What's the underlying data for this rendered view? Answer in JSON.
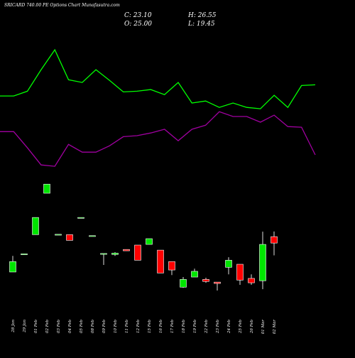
{
  "chart_data": {
    "type": "candlestick",
    "title": "SRICARD 740.00 PE Options Chart Munafasutra.com",
    "stats": [
      "C: 23.10",
      "H: 26.55",
      "O: 25.00",
      "L: 19.45"
    ],
    "categories": [
      "28 Jan",
      "29 Jan",
      "01 Feb",
      "02 Feb",
      "03 Feb",
      "04 Feb",
      "05 Feb",
      "08 Feb",
      "09 Feb",
      "10 Feb",
      "11 Feb",
      "12 Feb",
      "15 Feb",
      "16 Feb",
      "17 Feb",
      "18 Feb",
      "19 Feb",
      "22 Feb",
      "23 Feb",
      "24 Feb",
      "25 Feb",
      "26 Feb",
      "01 Mar",
      "02 Mar"
    ],
    "open": [
      14.5,
      19.8,
      25.6,
      37.9,
      25.6,
      25.6,
      30.6,
      25.2,
      19.9,
      19.7,
      21.2,
      22.5,
      22.7,
      21.0,
      17.6,
      10.0,
      13.0,
      12.3,
      11.5,
      15.9,
      16.8,
      12.6,
      11.9,
      25.0
    ],
    "high": [
      19.3,
      19.9,
      30.7,
      40.6,
      25.7,
      25.6,
      30.7,
      25.3,
      20.0,
      20.4,
      21.2,
      22.5,
      24.4,
      21.0,
      17.6,
      13.0,
      15.5,
      12.8,
      11.5,
      18.9,
      16.8,
      13.8,
      26.5,
      26.55
    ],
    "low": [
      14.5,
      19.8,
      25.6,
      37.9,
      25.6,
      23.9,
      30.6,
      25.2,
      16.6,
      19.3,
      20.8,
      18.0,
      22.7,
      14.2,
      13.6,
      9.8,
      13.0,
      11.3,
      9.0,
      13.8,
      10.7,
      10.7,
      9.4,
      19.45
    ],
    "close": [
      17.6,
      19.9,
      30.7,
      40.6,
      25.7,
      23.9,
      30.7,
      25.3,
      20.0,
      20.1,
      20.8,
      18.0,
      24.4,
      14.2,
      15.1,
      12.3,
      14.7,
      11.7,
      11.1,
      18.0,
      12.1,
      11.3,
      22.7,
      23.1
    ],
    "up_color": "#00e600",
    "down_color": "#ff0000",
    "series": [
      {
        "color": "#00ff00",
        "values": [
          66.8,
          66.8,
          68.2,
          74.6,
          80.5,
          71.6,
          70.8,
          74.6,
          71.4,
          68.0,
          68.2,
          68.7,
          67.2,
          70.8,
          64.7,
          65.3,
          63.4,
          64.7,
          63.4,
          63.0,
          67.0,
          63.4,
          69.9,
          70.1
        ]
      },
      {
        "color": "#a000a0",
        "values": [
          56.2,
          56.2,
          51.4,
          46.3,
          45.9,
          52.4,
          50.1,
          50.1,
          52.0,
          54.7,
          55.0,
          55.8,
          56.9,
          53.5,
          56.9,
          58.1,
          62.1,
          60.7,
          60.7,
          59.0,
          61.1,
          57.7,
          57.5,
          49.3
        ]
      }
    ],
    "ylim": [
      -10.2,
      95.3
    ]
  }
}
